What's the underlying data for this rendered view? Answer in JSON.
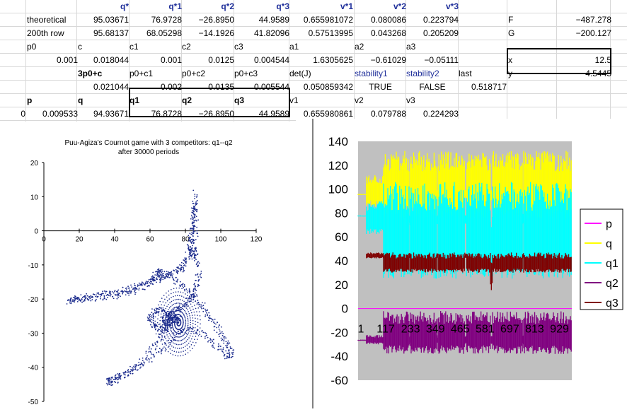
{
  "spreadsheet": {
    "rows": [
      {
        "id": "r1",
        "cells": [
          {
            "col": "B",
            "text": "q*",
            "style": "hdr"
          },
          {
            "col": "C",
            "text": "q*1",
            "style": "hdr"
          },
          {
            "col": "D",
            "text": "q*2",
            "style": "hdr"
          },
          {
            "col": "E",
            "text": "q*3",
            "style": "hdr"
          },
          {
            "col": "F",
            "text": "v*1",
            "style": "hdr"
          },
          {
            "col": "G",
            "text": "v*2",
            "style": "hdr"
          },
          {
            "col": "H",
            "text": "v*3",
            "style": "hdr"
          }
        ]
      },
      {
        "id": "r2",
        "cells": [
          {
            "col": "A",
            "text": "theoretical",
            "align": "left"
          },
          {
            "col": "B",
            "text": "95.03671"
          },
          {
            "col": "C",
            "text": "76.9728"
          },
          {
            "col": "D",
            "text": "−26.8950"
          },
          {
            "col": "E",
            "text": "44.9589"
          },
          {
            "col": "F",
            "text": "0.655981072"
          },
          {
            "col": "G",
            "text": "0.080086"
          },
          {
            "col": "H",
            "text": "0.223794"
          },
          {
            "col": "J",
            "text": "F",
            "align": "left"
          },
          {
            "col": "K",
            "text": "−487.278"
          }
        ]
      },
      {
        "id": "r3",
        "cells": [
          {
            "col": "A",
            "text": "200th row",
            "align": "left"
          },
          {
            "col": "B",
            "text": "95.68137"
          },
          {
            "col": "C",
            "text": "68.05298"
          },
          {
            "col": "D",
            "text": "−14.1926"
          },
          {
            "col": "E",
            "text": "41.82096"
          },
          {
            "col": "F",
            "text": "0.57513995"
          },
          {
            "col": "G",
            "text": "0.043268"
          },
          {
            "col": "H",
            "text": "0.205209"
          },
          {
            "col": "J",
            "text": "G",
            "align": "left"
          },
          {
            "col": "K",
            "text": "−200.127"
          }
        ]
      },
      {
        "id": "r4",
        "cells": [
          {
            "col": "A",
            "text": "p0",
            "align": "left"
          },
          {
            "col": "B",
            "text": "c",
            "align": "left"
          },
          {
            "col": "C",
            "text": "c1",
            "align": "left"
          },
          {
            "col": "D",
            "text": "c2",
            "align": "left"
          },
          {
            "col": "E",
            "text": "c3",
            "align": "left"
          },
          {
            "col": "F",
            "text": "a1",
            "align": "left"
          },
          {
            "col": "G",
            "text": "a2",
            "align": "left"
          },
          {
            "col": "H",
            "text": "a3",
            "align": "left"
          }
        ]
      },
      {
        "id": "r5",
        "cells": [
          {
            "col": "A",
            "text": "0.001"
          },
          {
            "col": "B",
            "text": "0.018044"
          },
          {
            "col": "C",
            "text": "0.001"
          },
          {
            "col": "D",
            "text": "0.0125"
          },
          {
            "col": "E",
            "text": "0.004544"
          },
          {
            "col": "F",
            "text": "1.6305625"
          },
          {
            "col": "G",
            "text": "−0.61029"
          },
          {
            "col": "H",
            "text": "−0.05111"
          },
          {
            "col": "J",
            "text": "x",
            "align": "left"
          },
          {
            "col": "K",
            "text": "12.5"
          }
        ]
      },
      {
        "id": "r6",
        "cells": [
          {
            "col": "B",
            "text": "3p0+c",
            "style": "b",
            "align": "left"
          },
          {
            "col": "C",
            "text": "p0+c1",
            "align": "left"
          },
          {
            "col": "D",
            "text": "p0+c2",
            "align": "left"
          },
          {
            "col": "E",
            "text": "p0+c3",
            "align": "left"
          },
          {
            "col": "F",
            "text": "det(J)",
            "align": "left"
          },
          {
            "col": "G",
            "text": "stability1",
            "style": "blue",
            "align": "left"
          },
          {
            "col": "H",
            "text": "stability2",
            "style": "blue",
            "align": "left"
          },
          {
            "col": "I",
            "text": "last",
            "align": "left"
          },
          {
            "col": "J",
            "text": "y",
            "align": "left"
          },
          {
            "col": "K",
            "text": "4.5445"
          }
        ]
      },
      {
        "id": "r7",
        "cells": [
          {
            "col": "B",
            "text": "0.021044"
          },
          {
            "col": "C",
            "text": "0.002"
          },
          {
            "col": "D",
            "text": "0.0135"
          },
          {
            "col": "E",
            "text": "0.005544"
          },
          {
            "col": "F",
            "text": "0.050859342"
          },
          {
            "col": "G",
            "text": "TRUE",
            "align": "center"
          },
          {
            "col": "H",
            "text": "FALSE",
            "align": "center"
          },
          {
            "col": "I",
            "text": "0.518717"
          }
        ]
      },
      {
        "id": "r8",
        "cells": [
          {
            "col": "A",
            "text": "p",
            "style": "b",
            "align": "left"
          },
          {
            "col": "B",
            "text": "q",
            "style": "b",
            "align": "left"
          },
          {
            "col": "C",
            "text": "q1",
            "style": "b",
            "align": "left"
          },
          {
            "col": "D",
            "text": "q2",
            "style": "b",
            "align": "left"
          },
          {
            "col": "E",
            "text": "q3",
            "style": "b",
            "align": "left"
          },
          {
            "col": "F",
            "text": "v1",
            "align": "left"
          },
          {
            "col": "G",
            "text": "v2",
            "align": "left"
          },
          {
            "col": "H",
            "text": "v3",
            "align": "left"
          }
        ]
      },
      {
        "id": "r9",
        "cells": [
          {
            "col": "R",
            "text": "0"
          },
          {
            "col": "A",
            "text": "0.009533"
          },
          {
            "col": "B",
            "text": "94.93671"
          },
          {
            "col": "C",
            "text": "76.8728"
          },
          {
            "col": "D",
            "text": "−26.8950"
          },
          {
            "col": "E",
            "text": "44.9589"
          },
          {
            "col": "F",
            "text": "0.655980861"
          },
          {
            "col": "G",
            "text": "0.079788"
          },
          {
            "col": "H",
            "text": "0.224293"
          }
        ]
      }
    ]
  },
  "chart_data": [
    {
      "type": "scatter",
      "title": "Puu-Agiza's Cournot game with 3 competitors: q1--q2",
      "subtitle": "after 30000 periods",
      "xlabel": "",
      "ylabel": "",
      "xlim": [
        0,
        120
      ],
      "ylim": [
        -50,
        20
      ],
      "xticks": [
        0,
        20,
        40,
        60,
        80,
        100,
        120
      ],
      "yticks": [
        20,
        10,
        0,
        -10,
        -20,
        -30,
        -40,
        -50
      ],
      "point_color": "#1a2a8c",
      "series": [
        {
          "x": [
            86,
            85,
            84,
            83,
            84,
            85,
            86,
            85,
            84,
            83,
            82,
            80,
            78,
            74,
            70,
            65,
            60,
            54,
            48,
            42,
            36,
            30,
            24,
            18,
            14,
            20,
            30,
            40,
            50,
            58,
            62,
            64,
            66,
            70,
            76,
            82,
            88,
            92,
            96,
            100,
            104,
            106,
            104,
            98,
            92,
            84,
            76,
            68,
            60,
            52,
            46,
            40,
            36,
            38,
            44,
            52,
            60,
            66,
            70,
            72,
            70,
            66,
            62,
            60,
            62,
            66,
            70,
            74,
            76,
            74,
            70,
            68,
            70,
            72,
            76,
            80,
            84,
            86,
            88,
            86
          ],
          "y": [
            11,
            6,
            0,
            -5,
            -8,
            -6,
            2,
            8,
            4,
            -2,
            -6,
            -9,
            -11,
            -12,
            -13,
            -14,
            -15,
            -16,
            -17,
            -18,
            -18.5,
            -19,
            -19.5,
            -20,
            -20.5,
            -20,
            -19.5,
            -19,
            -18,
            -16,
            -14,
            -12,
            -12,
            -13,
            -15,
            -18,
            -21,
            -24,
            -27,
            -30,
            -33,
            -36,
            -37,
            -34,
            -31,
            -29,
            -30,
            -34,
            -38,
            -40,
            -42,
            -43,
            -44,
            -44.5,
            -43,
            -40,
            -35,
            -31,
            -28,
            -26,
            -24,
            -23,
            -24,
            -26,
            -28,
            -29,
            -28,
            -26,
            -25,
            -26,
            -27,
            -26,
            -25,
            -24,
            -23,
            -21,
            -19,
            -16,
            -12,
            -6
          ]
        }
      ]
    },
    {
      "type": "line",
      "title": "",
      "xlabel": "",
      "ylabel": "",
      "ylim": [
        -60,
        140
      ],
      "yticks": [
        140,
        120,
        100,
        80,
        60,
        40,
        20,
        0,
        -20,
        -40,
        -60
      ],
      "xticks": [
        "1",
        "117",
        "233",
        "349",
        "465",
        "581",
        "697",
        "813",
        "929"
      ],
      "xrange": [
        1,
        1000
      ],
      "background": "#c0c0c0",
      "legend_position": "right",
      "series": [
        {
          "name": "p",
          "color": "#ff00ff",
          "base": 0,
          "bands": [
            [
              1,
              1000,
              0,
              0
            ]
          ]
        },
        {
          "name": "q",
          "color": "#ffff00",
          "bands": [
            [
              1,
              40,
              95,
              96
            ],
            [
              40,
              120,
              85,
              112
            ],
            [
              120,
              240,
              75,
              132
            ],
            [
              240,
              245,
              92,
              100
            ],
            [
              245,
              370,
              75,
              132
            ],
            [
              370,
              375,
              92,
              100
            ],
            [
              375,
              500,
              75,
              132
            ],
            [
              500,
              508,
              92,
              100
            ],
            [
              508,
              620,
              75,
              132
            ],
            [
              620,
              630,
              90,
              100
            ],
            [
              630,
              770,
              75,
              132
            ],
            [
              770,
              775,
              92,
              100
            ],
            [
              775,
              1000,
              75,
              132
            ]
          ]
        },
        {
          "name": "q1",
          "color": "#00ffff",
          "bands": [
            [
              1,
              40,
              77,
              78
            ],
            [
              40,
              120,
              62,
              90
            ],
            [
              120,
              240,
              25,
              106
            ],
            [
              240,
              245,
              70,
              80
            ],
            [
              245,
              370,
              25,
              106
            ],
            [
              370,
              375,
              70,
              80
            ],
            [
              375,
              500,
              25,
              106
            ],
            [
              500,
              508,
              70,
              80
            ],
            [
              508,
              620,
              25,
              106
            ],
            [
              620,
              630,
              20,
              80
            ],
            [
              630,
              770,
              25,
              106
            ],
            [
              770,
              775,
              70,
              80
            ],
            [
              775,
              1000,
              25,
              106
            ]
          ]
        },
        {
          "name": "q2",
          "color": "#800080",
          "bands": [
            [
              1,
              40,
              -27,
              -26
            ],
            [
              40,
              120,
              -30,
              -22
            ],
            [
              120,
              240,
              -38,
              -2
            ],
            [
              240,
              245,
              -30,
              -22
            ],
            [
              245,
              370,
              -38,
              -2
            ],
            [
              370,
              375,
              -30,
              -22
            ],
            [
              375,
              500,
              -38,
              -2
            ],
            [
              500,
              508,
              -30,
              -22
            ],
            [
              508,
              620,
              -38,
              -2
            ],
            [
              620,
              630,
              -30,
              -22
            ],
            [
              630,
              770,
              -38,
              -2
            ],
            [
              770,
              775,
              -30,
              -22
            ],
            [
              775,
              1000,
              -38,
              -2
            ]
          ]
        },
        {
          "name": "q3",
          "color": "#800000",
          "bands": [
            [
              1,
              40,
              45,
              45
            ],
            [
              40,
              120,
              42,
              47
            ],
            [
              120,
              240,
              30,
              47
            ],
            [
              240,
              245,
              42,
              47
            ],
            [
              245,
              370,
              30,
              47
            ],
            [
              370,
              375,
              42,
              47
            ],
            [
              375,
              500,
              30,
              47
            ],
            [
              500,
              508,
              42,
              47
            ],
            [
              508,
              620,
              30,
              47
            ],
            [
              620,
              630,
              15,
              47
            ],
            [
              630,
              770,
              30,
              47
            ],
            [
              770,
              775,
              42,
              47
            ],
            [
              775,
              1000,
              30,
              47
            ]
          ]
        }
      ]
    }
  ]
}
